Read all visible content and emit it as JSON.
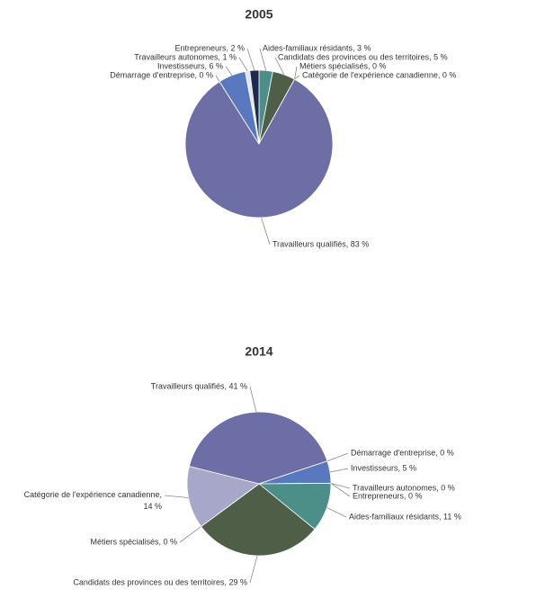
{
  "chart_data": [
    {
      "type": "pie",
      "title": "2005",
      "values": [
        3,
        5,
        0,
        0,
        83,
        0,
        6,
        1,
        2
      ],
      "value_labels": [
        "Aides-familiaux résidants, 3 %",
        "Candidats des provinces ou des territoires, 5 %",
        "Métiers spécialisés, 0 %",
        "Catégorie de l'expérience canadienne, 0 %",
        "Travailleurs qualifiés, 83 %",
        "Démarrage d'entreprise, 0 %",
        "Investisseurs, 6 %",
        "Travailleurs autonomes, 1 %",
        "Entrepreneurs, 2 %"
      ],
      "colors": [
        "#4b8f88",
        "#4f5f47",
        "#8a8a6a",
        "#a7a7c9",
        "#6e6ea6",
        "#9a9ad0",
        "#5a78c0",
        "#dfe6ee",
        "#1f2a4f"
      ]
    },
    {
      "type": "pie",
      "title": "2014",
      "values": [
        41,
        0,
        5,
        0,
        0,
        11,
        29,
        0,
        14
      ],
      "value_labels": [
        "Travailleurs qualifiés, 41 %",
        "Démarrage d'entreprise, 0 %",
        "Investisseurs, 5 %",
        "Travailleurs autonomes, 0 %",
        "Entrepreneurs, 0 %",
        "Aides-familiaux résidants, 11 %",
        "Candidats des provinces ou des territoires, 29 %",
        "Métiers spécialisés, 0 %",
        "Catégorie de l'expérience canadienne, 14 %"
      ],
      "colors": [
        "#6e6ea6",
        "#9a9ad0",
        "#5a78c0",
        "#dfe6ee",
        "#1f2a4f",
        "#4b8f88",
        "#4f5f47",
        "#8a8a6a",
        "#a7a7c9"
      ]
    }
  ]
}
